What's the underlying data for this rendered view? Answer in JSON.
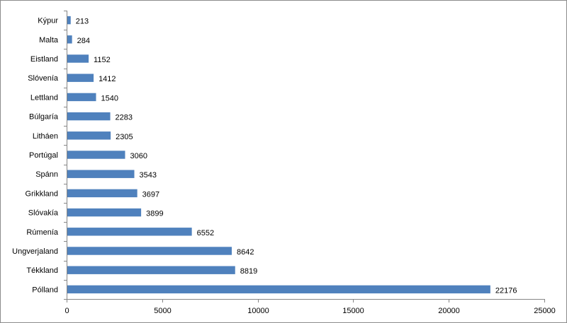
{
  "chart_data": {
    "type": "bar",
    "orientation": "horizontal",
    "categories": [
      "Kýpur",
      "Malta",
      "Eistland",
      "Slóvenía",
      "Lettland",
      "Búlgaría",
      "Litháen",
      "Portúgal",
      "Spánn",
      "Grikkland",
      "Slóvakía",
      "Rúmenía",
      "Ungverjaland",
      "Tékkland",
      "Pólland"
    ],
    "values": [
      213,
      284,
      1152,
      1412,
      1540,
      2283,
      2305,
      3060,
      3543,
      3697,
      3899,
      6552,
      8642,
      8819,
      22176
    ],
    "data_labels": [
      "213",
      "284",
      "1152",
      "1412",
      "1540",
      "2283",
      "2305",
      "3060",
      "3543",
      "3697",
      "3899",
      "6552",
      "8642",
      "8819",
      "22176"
    ],
    "xlim": [
      0,
      25000
    ],
    "x_ticks": [
      "0",
      "5000",
      "10000",
      "15000",
      "20000",
      "25000"
    ],
    "x_tick_values": [
      0,
      5000,
      10000,
      15000,
      20000,
      25000
    ],
    "grid": false,
    "legend": "none",
    "title": "",
    "xlabel": "",
    "ylabel": "",
    "bar_color": "#4F81BD"
  }
}
